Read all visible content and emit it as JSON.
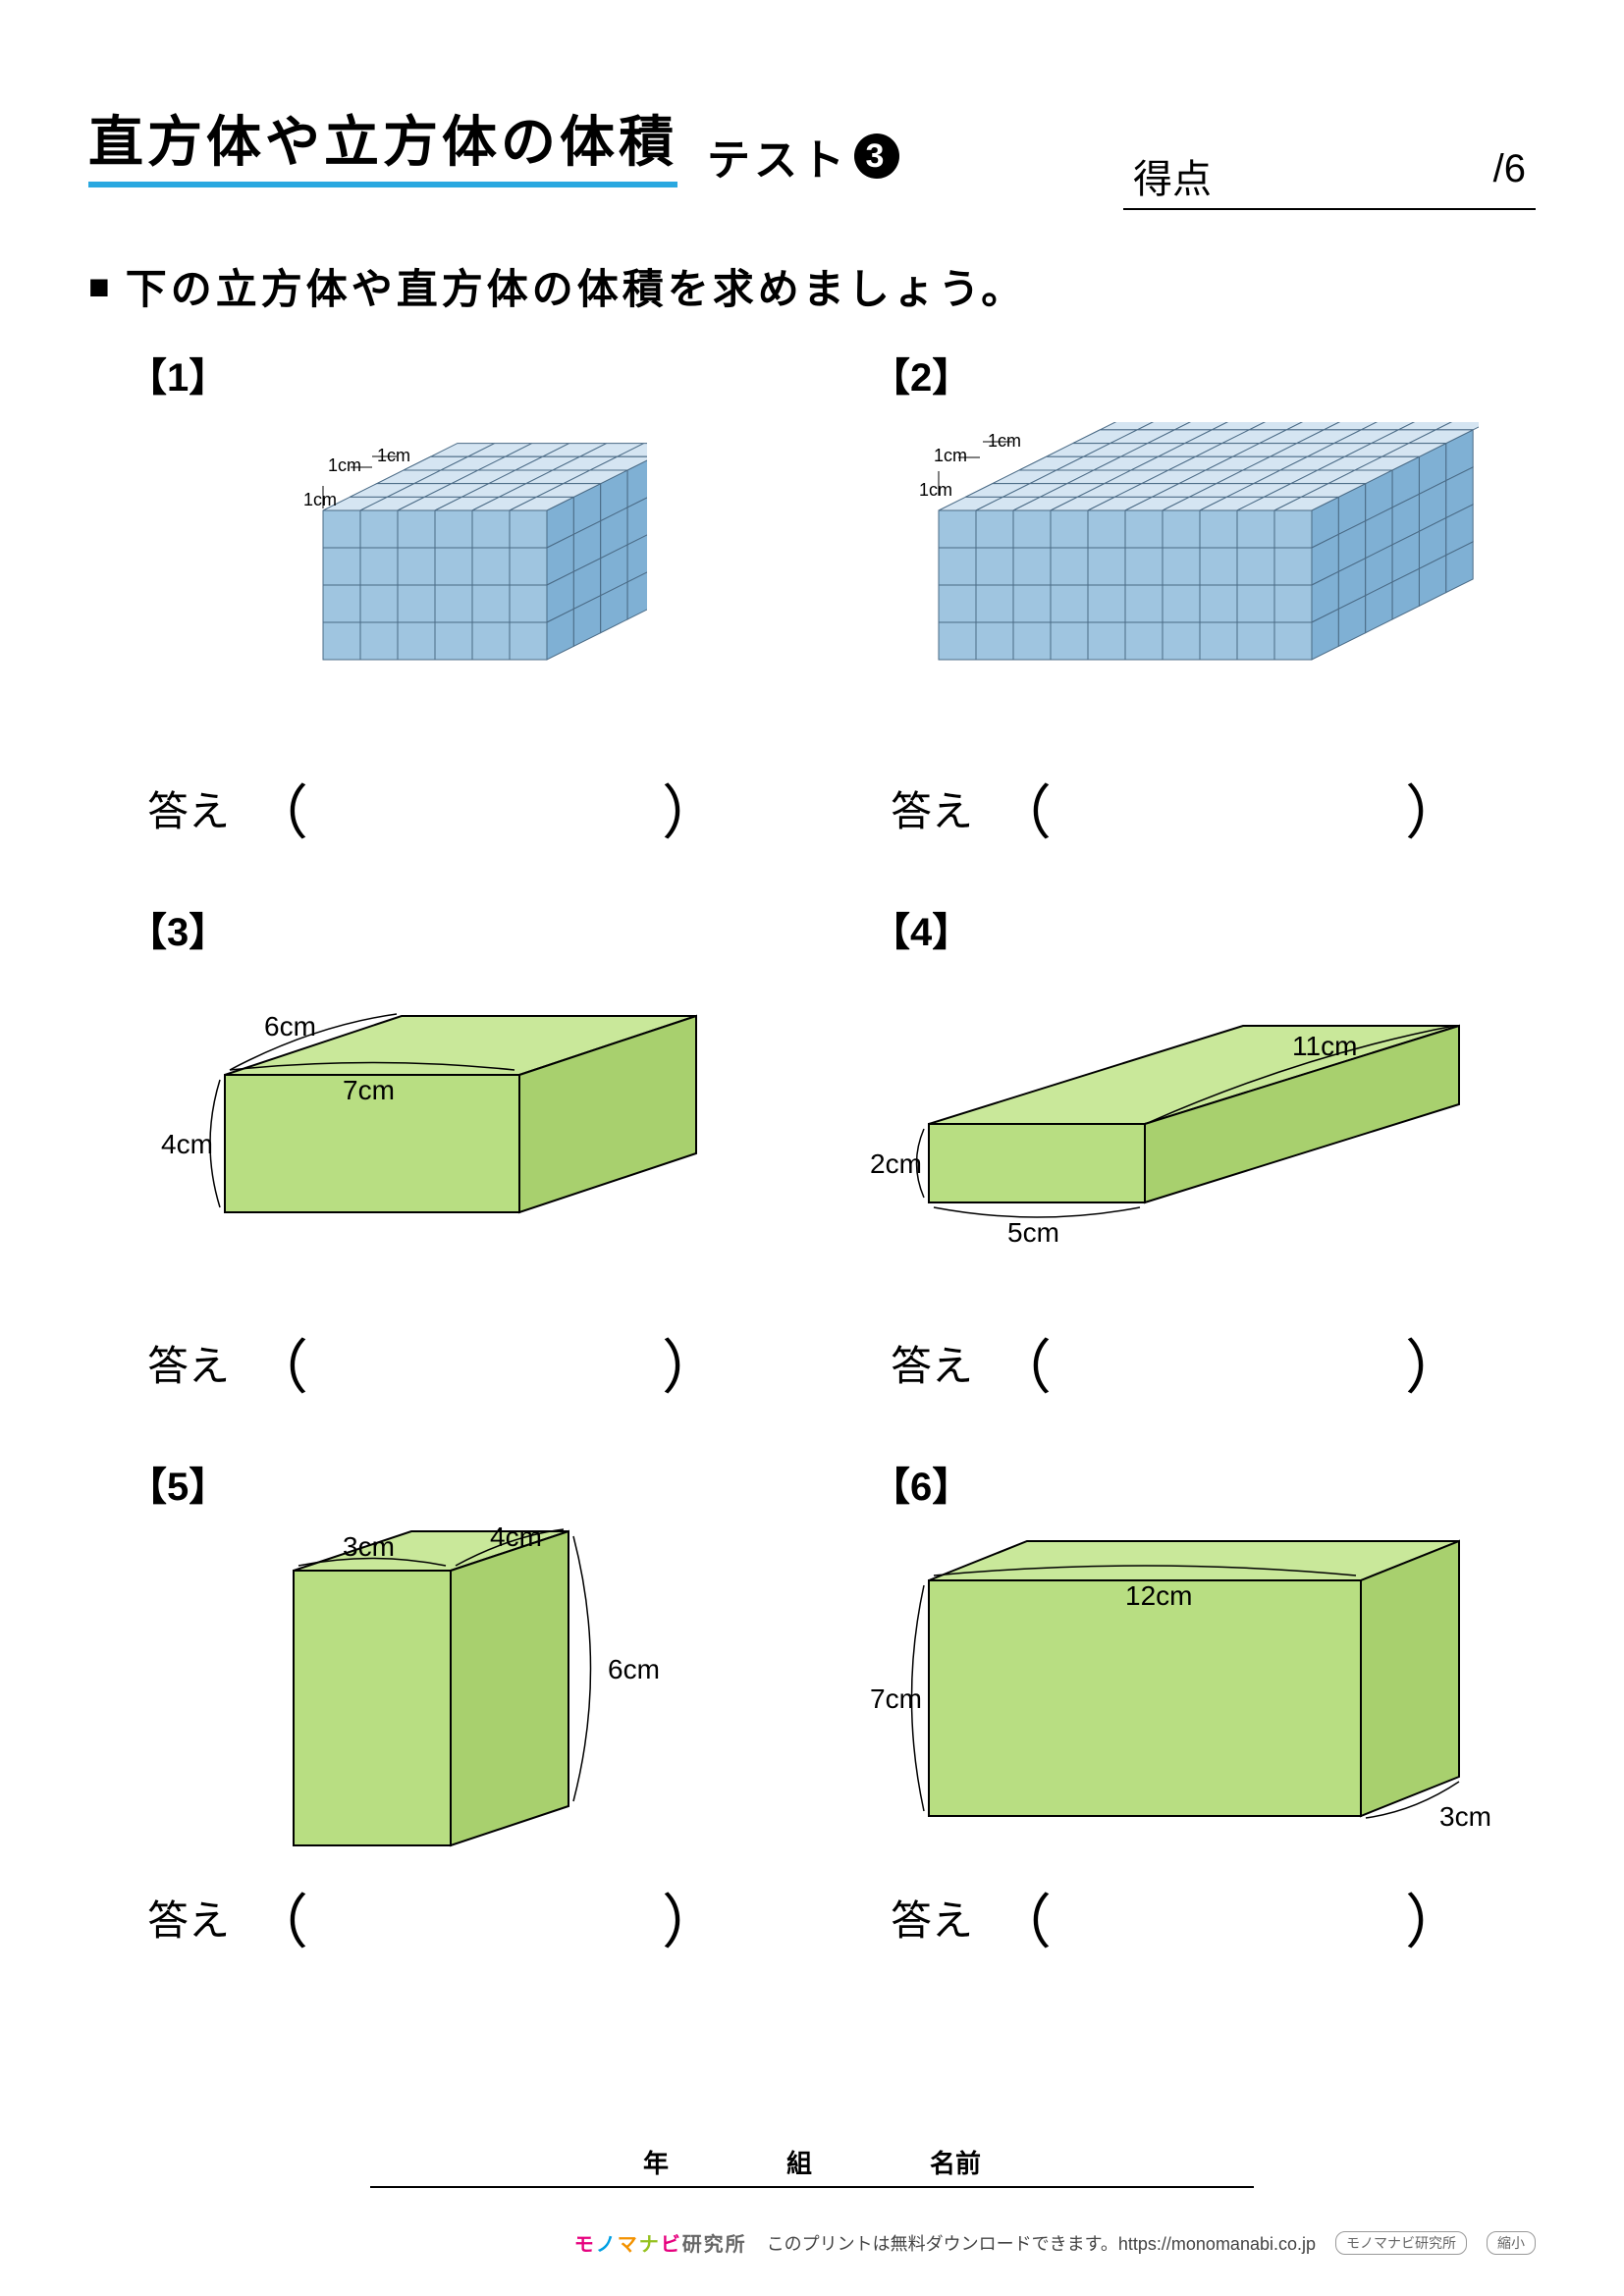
{
  "title": "直方体や立方体の体積",
  "subtitle_prefix": "テスト",
  "subtitle_num": "3",
  "score_label": "得点",
  "score_total": "/6",
  "instruction": "下の立方体や直方体の体積を求めましょう。",
  "answer_label": "答え",
  "problems": [
    {
      "num": "【1】",
      "type": "unit-cube",
      "unit_label": "1cm",
      "dims_units": {
        "w": 6,
        "d": 4,
        "h": 4
      },
      "colors": {
        "top": "#d5e5f2",
        "front": "#9fc5e0",
        "side": "#7fb0d4",
        "stroke": "#4a6a85"
      }
    },
    {
      "num": "【2】",
      "type": "unit-cube",
      "unit_label": "1cm",
      "dims_units": {
        "w": 10,
        "d": 6,
        "h": 4
      },
      "colors": {
        "top": "#d5e5f2",
        "front": "#9fc5e0",
        "side": "#7fb0d4",
        "stroke": "#4a6a85"
      }
    },
    {
      "num": "【3】",
      "type": "solid",
      "labels": {
        "width": "7cm",
        "depth": "6cm",
        "height": "4cm"
      },
      "label_pos": {
        "width": "top-front",
        "depth": "top-left",
        "height": "left"
      },
      "colors": {
        "top": "#c9e89a",
        "front": "#b8de82",
        "side": "#a8d06e",
        "stroke": "#000"
      }
    },
    {
      "num": "【4】",
      "type": "solid",
      "labels": {
        "width": "5cm",
        "depth": "11cm",
        "height": "2cm"
      },
      "label_pos": {
        "width": "bottom-front",
        "depth": "top-right",
        "height": "left"
      },
      "colors": {
        "top": "#c9e89a",
        "front": "#b8de82",
        "side": "#a8d06e",
        "stroke": "#000"
      }
    },
    {
      "num": "【5】",
      "type": "solid",
      "labels": {
        "width": "3cm",
        "depth": "4cm",
        "height": "6cm"
      },
      "label_pos": {
        "width": "top-front",
        "depth": "top-right",
        "height": "right"
      },
      "colors": {
        "top": "#c9e89a",
        "front": "#b8de82",
        "side": "#a8d06e",
        "stroke": "#000"
      }
    },
    {
      "num": "【6】",
      "type": "solid",
      "labels": {
        "width": "12cm",
        "depth": "3cm",
        "height": "7cm"
      },
      "label_pos": {
        "width": "top-front",
        "depth": "bottom-right",
        "height": "left"
      },
      "colors": {
        "top": "#c9e89a",
        "front": "#b8de82",
        "side": "#a8d06e",
        "stroke": "#000"
      }
    }
  ],
  "footer": {
    "year": "年",
    "class": "組",
    "name": "名前",
    "credit_text": "このプリントは無料ダウンロードできます。https://monomanabi.co.jp",
    "tag1": "モノマナビ研究所",
    "tag2": "縮小"
  }
}
